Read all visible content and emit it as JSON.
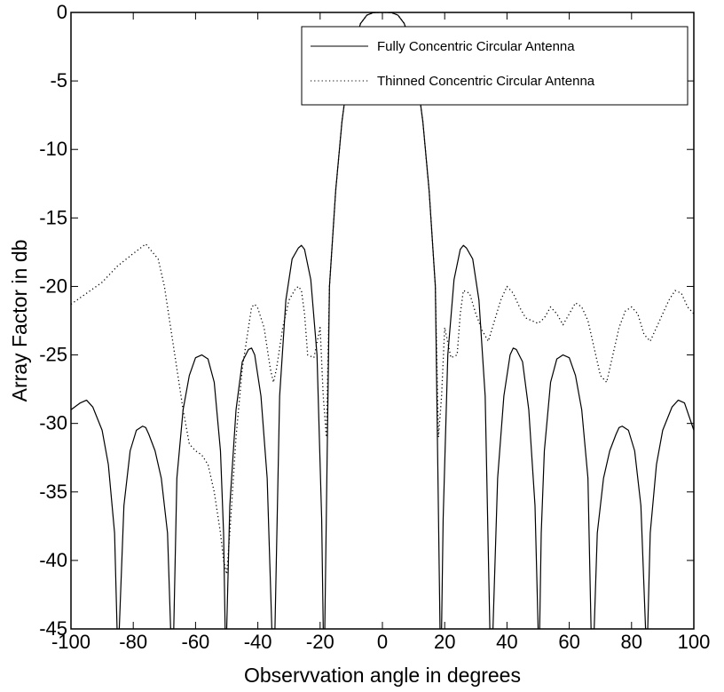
{
  "chart_data": {
    "type": "line",
    "title": "",
    "xlabel": "Observvation angle in degrees",
    "ylabel": "Array Factor in db",
    "xlim": [
      -100,
      100
    ],
    "ylim": [
      -45,
      0
    ],
    "xticks": [
      -100,
      -80,
      -60,
      -40,
      -20,
      0,
      20,
      40,
      60,
      80,
      100
    ],
    "yticks": [
      0,
      -5,
      -10,
      -15,
      -20,
      -25,
      -30,
      -35,
      -40,
      -45
    ],
    "xtick_labels": [
      "-100",
      "-80",
      "-60",
      "-40",
      "-20",
      "0",
      "20",
      "40",
      "60",
      "80",
      "100"
    ],
    "ytick_labels": [
      "0",
      "-5",
      "-10",
      "-15",
      "-20",
      "-25",
      "-30",
      "-35",
      "-40",
      "-45"
    ],
    "grid": false,
    "legend_position": "top-right",
    "series": [
      {
        "name": "Fully Concentric Circular Antenna",
        "style": "solid",
        "color": "#000000",
        "x": [
          -100,
          -97,
          -95,
          -93,
          -90,
          -88,
          -86,
          -85.2,
          -84.5,
          -83,
          -81,
          -79,
          -77,
          -76,
          -75,
          -73,
          -71,
          -69,
          -68,
          -67.5,
          -67,
          -66,
          -64,
          -62,
          -60,
          -58,
          -56,
          -54,
          -52,
          -51,
          -50.5,
          -50,
          -49,
          -47,
          -45,
          -43,
          -42,
          -41,
          -39,
          -37,
          -35.5,
          -35,
          -34.5,
          -33,
          -31,
          -29,
          -27,
          -26,
          -25,
          -23,
          -21,
          -19.5,
          -19,
          -18.5,
          -17,
          -15,
          -13,
          -11,
          -9,
          -7,
          -5,
          -3,
          -1,
          0,
          1,
          3,
          5,
          7,
          9,
          11,
          13,
          15,
          17,
          18.5,
          19,
          19.5,
          21,
          23,
          25,
          26,
          27,
          29,
          31,
          33,
          34.5,
          35,
          35.5,
          37,
          39,
          41,
          42,
          43,
          45,
          47,
          49,
          50,
          50.5,
          51,
          52,
          54,
          56,
          58,
          60,
          62,
          64,
          66,
          67,
          67.5,
          68,
          69,
          71,
          73,
          75,
          76,
          77,
          79,
          81,
          83,
          84.5,
          85.2,
          86,
          88,
          90,
          93,
          95,
          97,
          100
        ],
        "y": [
          -29,
          -28.5,
          -28.3,
          -28.8,
          -30.5,
          -33,
          -38,
          -45,
          -45,
          -36,
          -32,
          -30.5,
          -30.2,
          -30.3,
          -30.8,
          -32,
          -34,
          -38,
          -45,
          -45,
          -45,
          -34,
          -29,
          -26.5,
          -25.2,
          -25,
          -25.3,
          -27,
          -32,
          -38,
          -45,
          -45,
          -36,
          -29,
          -25.5,
          -24.6,
          -24.5,
          -25,
          -28,
          -34,
          -45,
          -45,
          -45,
          -28,
          -21,
          -18,
          -17.2,
          -17,
          -17.3,
          -19.5,
          -25,
          -37,
          -45,
          -45,
          -20,
          -13,
          -8,
          -4.5,
          -2.2,
          -0.8,
          -0.2,
          -0.02,
          0,
          0,
          0,
          -0.02,
          -0.2,
          -0.8,
          -2.2,
          -4.5,
          -8,
          -13,
          -20,
          -45,
          -45,
          -37,
          -25,
          -19.5,
          -17.3,
          -17,
          -17.2,
          -18,
          -21,
          -28,
          -45,
          -45,
          -45,
          -34,
          -28,
          -25,
          -24.5,
          -24.6,
          -25.5,
          -29,
          -36,
          -45,
          -45,
          -38,
          -32,
          -27,
          -25.3,
          -25,
          -25.2,
          -26.5,
          -29,
          -34,
          -45,
          -45,
          -45,
          -38,
          -34,
          -32,
          -30.8,
          -30.3,
          -30.2,
          -30.5,
          -32,
          -36,
          -45,
          -45,
          -38,
          -33,
          -30.5,
          -28.8,
          -28.3,
          -28.5,
          -30.5
        ]
      },
      {
        "name": "Thinned Concentric Circular Antenna",
        "style": "dotted",
        "color": "#000000",
        "x": [
          -100,
          -95,
          -90,
          -85,
          -80,
          -76,
          -72,
          -70,
          -68,
          -66,
          -64,
          -62,
          -60,
          -58,
          -56,
          -54,
          -52,
          -51,
          -50,
          -49,
          -47,
          -45,
          -43,
          -42,
          -41,
          -40,
          -38,
          -36,
          -35,
          -34,
          -32,
          -30,
          -28,
          -27,
          -26,
          -25,
          -24,
          -22,
          -20,
          -19,
          -18,
          -17,
          -15,
          -13,
          -11,
          -9,
          -7,
          -5,
          -3,
          -1,
          0,
          1,
          3,
          5,
          7,
          9,
          11,
          13,
          15,
          17,
          18,
          19,
          20,
          22,
          24,
          25,
          26,
          28,
          30,
          32,
          34,
          36,
          38,
          40,
          42,
          44,
          46,
          48,
          50,
          52,
          54,
          56,
          58,
          60,
          62,
          64,
          66,
          68,
          70,
          72,
          74,
          76,
          78,
          80,
          82,
          84,
          86,
          88,
          90,
          92,
          94,
          96,
          98,
          100
        ],
        "y": [
          -21.3,
          -20.5,
          -19.7,
          -18.5,
          -17.6,
          -16.9,
          -18,
          -20,
          -23,
          -26,
          -29,
          -31.5,
          -32,
          -32.3,
          -33,
          -35,
          -38,
          -40,
          -41,
          -38,
          -31,
          -26,
          -23,
          -21.5,
          -21.3,
          -21.6,
          -23,
          -26,
          -27,
          -26,
          -23,
          -21,
          -20.2,
          -20,
          -20.3,
          -22,
          -25,
          -25.2,
          -23,
          -28,
          -31,
          -20,
          -13,
          -8,
          -4.5,
          -2.2,
          -0.8,
          -0.2,
          -0.02,
          0,
          0,
          0,
          -0.02,
          -0.2,
          -0.8,
          -2.2,
          -4.5,
          -8,
          -13,
          -20,
          -31,
          -28,
          -23,
          -25.2,
          -25,
          -22,
          -20.3,
          -20.5,
          -22,
          -23.2,
          -24,
          -22.5,
          -21,
          -20,
          -20.5,
          -21.5,
          -22.3,
          -22.5,
          -22.7,
          -22.3,
          -21.5,
          -22,
          -22.8,
          -22,
          -21.2,
          -21.5,
          -22.5,
          -24.5,
          -26.5,
          -27,
          -25,
          -23,
          -21.8,
          -21.5,
          -22,
          -23.5,
          -24,
          -23,
          -22,
          -21,
          -20.3,
          -20.5,
          -21.5,
          -22
        ]
      }
    ]
  }
}
